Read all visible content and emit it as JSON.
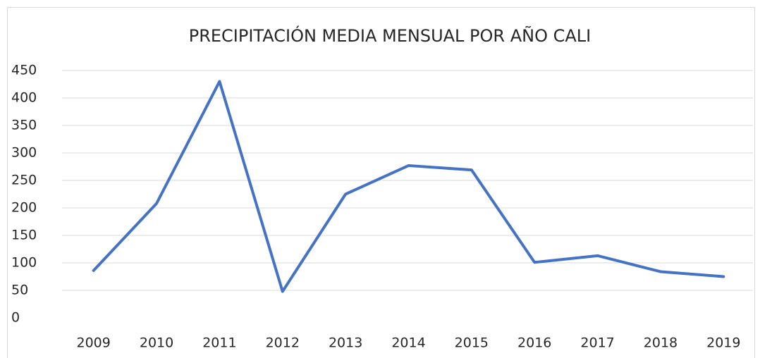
{
  "chart_data": {
    "type": "line",
    "title": "PRECIPITACIÓN MEDIA MENSUAL POR AÑO CALI",
    "categories": [
      "2009",
      "2010",
      "2011",
      "2012",
      "2013",
      "2014",
      "2015",
      "2016",
      "2017",
      "2018",
      "2019"
    ],
    "values": [
      86,
      208,
      430,
      48,
      225,
      277,
      269,
      101,
      113,
      84,
      75
    ],
    "color": "#4472c4",
    "ylim": [
      0,
      450
    ],
    "yticks": [
      0,
      50,
      100,
      150,
      200,
      250,
      300,
      350,
      400,
      450
    ],
    "grid": true
  }
}
